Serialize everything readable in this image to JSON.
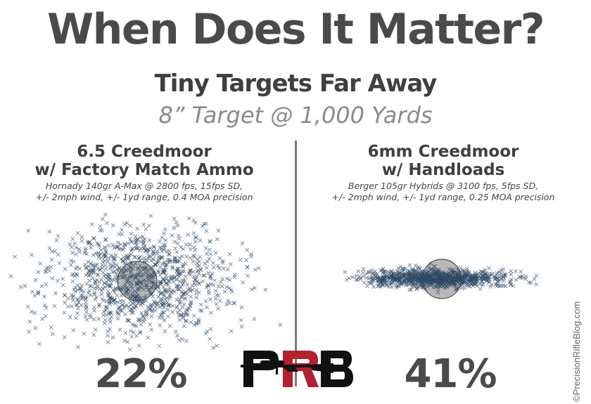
{
  "header": {
    "title": "When Does It Matter?",
    "subtitle": "Tiny Targets Far Away",
    "tagline": "8” Target @ 1,000 Yards"
  },
  "left": {
    "title_line1": "6.5 Creedmoor",
    "title_line2": "w/ Factory Match Ammo",
    "detail_line1": "Hornady 140gr A-Max @ 2800 fps, 15fps SD,",
    "detail_line2": "+/- 2mph wind, +/- 1yd range, 0.4 MOA precision",
    "hit_percent": "22%"
  },
  "right": {
    "title_line1": "6mm Creedmoor",
    "title_line2": "w/ Handloads",
    "detail_line1": "Berger 105gr Hybrids @ 3100 fps, 5fps SD,",
    "detail_line2": "+/- 2mph wind, +/- 1yd range, 0.25 MOA precision",
    "hit_percent": "41%"
  },
  "logo": {
    "text": "PRB"
  },
  "watermark": "©PrecisionRifleBlog.com",
  "colors": {
    "marker": "#2f4a66",
    "target_fill": "#b8b8b8",
    "logo_red": "#b3202e",
    "logo_black": "#111111"
  }
}
